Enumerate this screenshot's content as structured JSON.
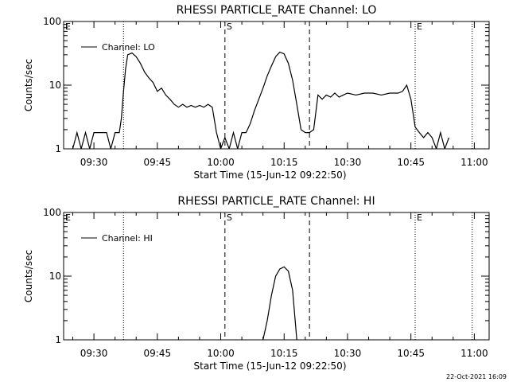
{
  "footer": {
    "timestamp": "22-Oct-2021 16:09"
  },
  "chart_data": [
    {
      "type": "line",
      "title": "RHESSI PARTICLE_RATE Channel: LO",
      "xlabel": "Start Time (15-Jun-12 09:22:50)",
      "ylabel": "Counts/sec",
      "yscale": "log",
      "ylim": [
        1,
        100
      ],
      "xlim": [
        "09:22:50",
        "11:03:30"
      ],
      "xticks": [
        "09:30",
        "09:45",
        "10:00",
        "10:15",
        "10:30",
        "10:45",
        "11:00"
      ],
      "yticks": [
        "1",
        "10",
        "100"
      ],
      "legend": {
        "entries": [
          "Channel: LO"
        ],
        "placement": "top-left"
      },
      "markers": [
        {
          "time": "09:37:00",
          "label": "",
          "style": "dotted"
        },
        {
          "time": "10:01:00",
          "label": "S",
          "style": "dashed"
        },
        {
          "time": "10:21:00",
          "label": "",
          "style": "dashed"
        },
        {
          "time": "10:46:00",
          "label": "E",
          "style": "dotted"
        },
        {
          "time": "10:59:30",
          "label": "",
          "style": "dotted"
        }
      ],
      "corner_marker": "E",
      "series": [
        {
          "name": "Channel: LO",
          "x": [
            "09:25:00",
            "09:26:00",
            "09:27:00",
            "09:28:00",
            "09:29:00",
            "09:30:00",
            "09:31:00",
            "09:32:00",
            "09:33:00",
            "09:34:00",
            "09:35:00",
            "09:36:00",
            "09:36:30",
            "09:37:00",
            "09:37:30",
            "09:38:00",
            "09:39:00",
            "09:40:00",
            "09:41:00",
            "09:42:00",
            "09:43:00",
            "09:44:00",
            "09:45:00",
            "09:46:00",
            "09:47:00",
            "09:48:00",
            "09:49:00",
            "09:50:00",
            "09:51:00",
            "09:52:00",
            "09:53:00",
            "09:54:00",
            "09:55:00",
            "09:56:00",
            "09:57:00",
            "09:58:00",
            "09:59:00",
            "10:00:00",
            "10:01:00",
            "10:02:00",
            "10:03:00",
            "10:04:00",
            "10:05:00",
            "10:06:00",
            "10:07:00",
            "10:08:00",
            "10:09:00",
            "10:10:00",
            "10:11:00",
            "10:12:00",
            "10:13:00",
            "10:14:00",
            "10:15:00",
            "10:16:00",
            "10:17:00",
            "10:18:00",
            "10:19:00",
            "10:20:00",
            "10:21:00",
            "10:22:00",
            "10:23:00",
            "10:24:00",
            "10:25:00",
            "10:26:00",
            "10:27:00",
            "10:28:00",
            "10:29:00",
            "10:30:00",
            "10:32:00",
            "10:34:00",
            "10:36:00",
            "10:38:00",
            "10:40:00",
            "10:42:00",
            "10:43:00",
            "10:44:00",
            "10:45:00",
            "10:46:00",
            "10:47:00",
            "10:48:00",
            "10:49:00",
            "10:50:00",
            "10:51:00",
            "10:52:00",
            "10:53:00",
            "10:54:00"
          ],
          "y": [
            1,
            1.8,
            1,
            1.8,
            1,
            1.8,
            1.8,
            1.8,
            1.8,
            1,
            1.8,
            1.8,
            3,
            8,
            18,
            30,
            32,
            28,
            22,
            16,
            13,
            11,
            8,
            9,
            7,
            6,
            5,
            4.5,
            5,
            4.5,
            4.8,
            4.5,
            4.8,
            4.5,
            5,
            4.5,
            1.8,
            1,
            1.5,
            1,
            1.8,
            1,
            1.8,
            1.8,
            2.5,
            4,
            6,
            9,
            14,
            20,
            28,
            33,
            31,
            22,
            12,
            5,
            2,
            1.8,
            1.8,
            2,
            7,
            6,
            7,
            6.5,
            7.5,
            6.5,
            7,
            7.5,
            7,
            7.5,
            7.5,
            7,
            7.5,
            7.5,
            8,
            10,
            6,
            2.2,
            1.8,
            1.5,
            1.8,
            1.5,
            1,
            1.8,
            1,
            1.5
          ]
        }
      ]
    },
    {
      "type": "line",
      "title": "RHESSI PARTICLE_RATE Channel: HI",
      "xlabel": "Start Time (15-Jun-12 09:22:50)",
      "ylabel": "Counts/sec",
      "yscale": "log",
      "ylim": [
        1,
        100
      ],
      "xlim": [
        "09:22:50",
        "11:03:30"
      ],
      "xticks": [
        "09:30",
        "09:45",
        "10:00",
        "10:15",
        "10:30",
        "10:45",
        "11:00"
      ],
      "yticks": [
        "1",
        "10",
        "100"
      ],
      "legend": {
        "entries": [
          "Channel: HI"
        ],
        "placement": "top-left"
      },
      "markers": [
        {
          "time": "09:37:00",
          "label": "",
          "style": "dotted"
        },
        {
          "time": "10:01:00",
          "label": "S",
          "style": "dashed"
        },
        {
          "time": "10:21:00",
          "label": "",
          "style": "dashed"
        },
        {
          "time": "10:46:00",
          "label": "E",
          "style": "dotted"
        },
        {
          "time": "10:59:30",
          "label": "",
          "style": "dotted"
        }
      ],
      "corner_marker": "E",
      "series": [
        {
          "name": "Channel: HI",
          "x": [
            "10:10:00",
            "10:11:00",
            "10:12:00",
            "10:13:00",
            "10:14:00",
            "10:15:00",
            "10:16:00",
            "10:17:00",
            "10:18:00"
          ],
          "y": [
            1,
            2,
            5,
            10,
            13,
            14,
            12,
            6,
            1
          ]
        }
      ]
    }
  ]
}
